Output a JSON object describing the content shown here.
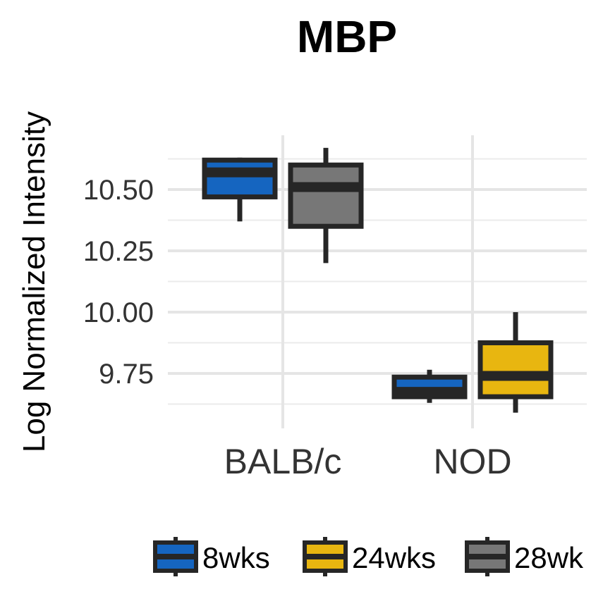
{
  "chart_data": {
    "type": "box",
    "title": "MBP",
    "xlabel": "",
    "ylabel": "Log Normalized Intensity",
    "categories": [
      "BALB/c",
      "NOD"
    ],
    "y_ticks": [
      "9.75",
      "10.00",
      "10.25",
      "10.50"
    ],
    "ylim": [
      9.58,
      10.7
    ],
    "grid": true,
    "legend_position": "bottom",
    "series": [
      {
        "name": "8wks",
        "color": "#1565C0",
        "boxes": [
          {
            "category": "BALB/c",
            "min": 10.37,
            "q1": 10.47,
            "median": 10.57,
            "q3": 10.62,
            "max": 10.63
          },
          {
            "category": "NOD",
            "min": 9.63,
            "q1": 9.655,
            "median": 9.675,
            "q3": 9.735,
            "max": 9.765
          }
        ]
      },
      {
        "name": "24wks",
        "color": "#E8B610",
        "boxes": [
          {
            "category": "NOD",
            "min": 9.59,
            "q1": 9.655,
            "median": 9.74,
            "q3": 9.875,
            "max": 10.0
          }
        ]
      },
      {
        "name": "28wk",
        "color": "#777777",
        "boxes": [
          {
            "category": "BALB/c",
            "min": 10.2,
            "q1": 10.35,
            "median": 10.51,
            "q3": 10.6,
            "max": 10.67
          }
        ]
      }
    ]
  }
}
